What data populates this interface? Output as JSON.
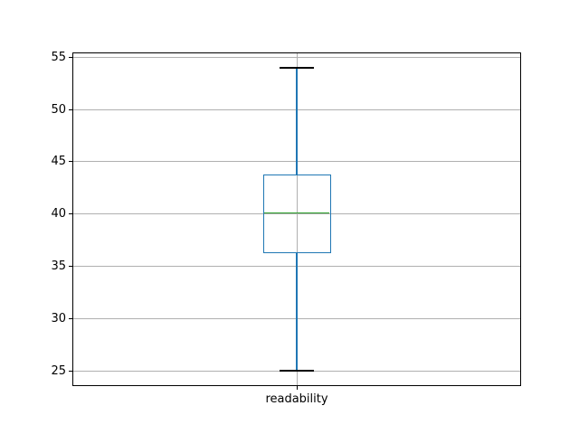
{
  "chart_data": {
    "type": "box",
    "title": "",
    "xlabel": "",
    "ylabel": "",
    "categories": [
      "readability"
    ],
    "series": [
      {
        "name": "readability",
        "whisker_low": 25,
        "q1": 36.25,
        "median": 40.1,
        "q3": 43.75,
        "whisker_high": 54,
        "outliers": []
      }
    ],
    "yticks": [
      25,
      30,
      35,
      40,
      45,
      50,
      55
    ],
    "ylim": [
      23.55,
      55.45
    ],
    "grid": true,
    "legend_position": "none",
    "colors": {
      "box": "#1f77b4",
      "whisker": "#1f77b4",
      "median": "#2ca02c",
      "cap": "#000000",
      "grid": "#b0b0b0",
      "spine": "#000000",
      "tick_label": "#000000",
      "background": "#ffffff"
    }
  }
}
